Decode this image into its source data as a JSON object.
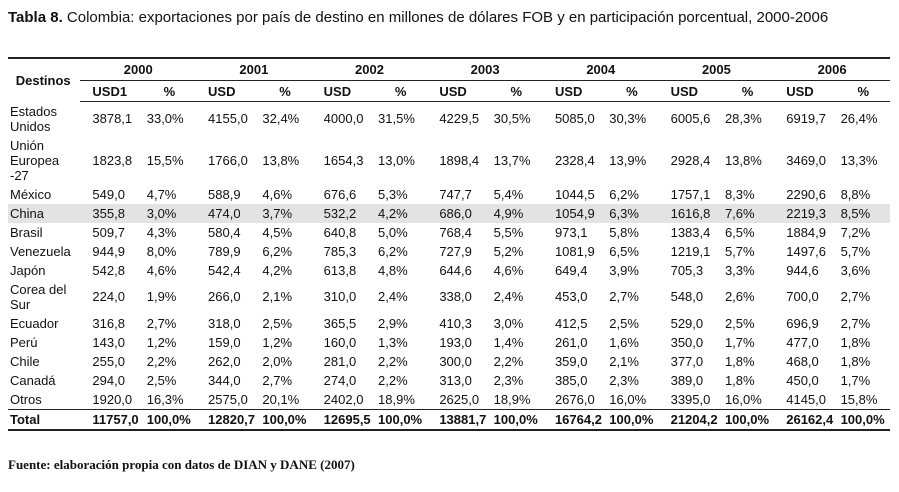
{
  "header": {
    "label": "Tabla 8.",
    "title": "Colombia: exportaciones por país de destino en millones de dólares FOB y en participación porcentual, 2000-2006"
  },
  "table": {
    "first_column": "Destinos",
    "years": [
      "2000",
      "2001",
      "2002",
      "2003",
      "2004",
      "2005",
      "2006"
    ],
    "subheaders": [
      "USD1",
      "%",
      "USD",
      "%",
      "USD",
      "%",
      "USD",
      "%",
      "USD",
      "%",
      "USD",
      "%",
      "USD",
      "%"
    ],
    "rows": [
      {
        "destino": "Estados Unidos",
        "values": [
          "3878,1",
          "33,0%",
          "4155,0",
          "32,4%",
          "4000,0",
          "31,5%",
          "4229,5",
          "30,5%",
          "5085,0",
          "30,3%",
          "6005,6",
          "28,3%",
          "6919,7",
          "26,4%"
        ]
      },
      {
        "destino": "Unión Europea -27",
        "values": [
          "1823,8",
          "15,5%",
          "1766,0",
          "13,8%",
          "1654,3",
          "13,0%",
          "1898,4",
          "13,7%",
          "2328,4",
          "13,9%",
          "2928,4",
          "13,8%",
          "3469,0",
          "13,3%"
        ]
      },
      {
        "destino": "México",
        "values": [
          "549,0",
          "4,7%",
          "588,9",
          "4,6%",
          "676,6",
          "5,3%",
          "747,7",
          "5,4%",
          "1044,5",
          "6,2%",
          "1757,1",
          "8,3%",
          "2290,6",
          "8,8%"
        ]
      },
      {
        "destino": "China",
        "values": [
          "355,8",
          "3,0%",
          "474,0",
          "3,7%",
          "532,2",
          "4,2%",
          "686,0",
          "4,9%",
          "1054,9",
          "6,3%",
          "1616,8",
          "7,6%",
          "2219,3",
          "8,5%"
        ]
      },
      {
        "destino": "Brasil",
        "values": [
          "509,7",
          "4,3%",
          "580,4",
          "4,5%",
          "640,8",
          "5,0%",
          "768,4",
          "5,5%",
          "973,1",
          "5,8%",
          "1383,4",
          "6,5%",
          "1884,9",
          "7,2%"
        ]
      },
      {
        "destino": "Venezuela",
        "values": [
          "944,9",
          "8,0%",
          "789,9",
          "6,2%",
          "785,3",
          "6,2%",
          "727,9",
          "5,2%",
          "1081,9",
          "6,5%",
          "1219,1",
          "5,7%",
          "1497,6",
          "5,7%"
        ]
      },
      {
        "destino": "Japón",
        "values": [
          "542,8",
          "4,6%",
          "542,4",
          "4,2%",
          "613,8",
          "4,8%",
          "644,6",
          "4,6%",
          "649,4",
          "3,9%",
          "705,3",
          "3,3%",
          "944,6",
          "3,6%"
        ]
      },
      {
        "destino": "Corea del Sur",
        "values": [
          "224,0",
          "1,9%",
          "266,0",
          "2,1%",
          "310,0",
          "2,4%",
          "338,0",
          "2,4%",
          "453,0",
          "2,7%",
          "548,0",
          "2,6%",
          "700,0",
          "2,7%"
        ]
      },
      {
        "destino": "Ecuador",
        "values": [
          "316,8",
          "2,7%",
          "318,0",
          "2,5%",
          "365,5",
          "2,9%",
          "410,3",
          "3,0%",
          "412,5",
          "2,5%",
          "529,0",
          "2,5%",
          "696,9",
          "2,7%"
        ]
      },
      {
        "destino": "Perú",
        "values": [
          "143,0",
          "1,2%",
          "159,0",
          "1,2%",
          "160,0",
          "1,3%",
          "193,0",
          "1,4%",
          "261,0",
          "1,6%",
          "350,0",
          "1,7%",
          "477,0",
          "1,8%"
        ]
      },
      {
        "destino": "Chile",
        "values": [
          "255,0",
          "2,2%",
          "262,0",
          "2,0%",
          "281,0",
          "2,2%",
          "300,0",
          "2,2%",
          "359,0",
          "2,1%",
          "377,0",
          "1,8%",
          "468,0",
          "1,8%"
        ]
      },
      {
        "destino": "Canadá",
        "values": [
          "294,0",
          "2,5%",
          "344,0",
          "2,7%",
          "274,0",
          "2,2%",
          "313,0",
          "2,3%",
          "385,0",
          "2,3%",
          "389,0",
          "1,8%",
          "450,0",
          "1,7%"
        ]
      },
      {
        "destino": "Otros",
        "values": [
          "1920,0",
          "16,3%",
          "2575,0",
          "20,1%",
          "2402,0",
          "18,9%",
          "2625,0",
          "18,9%",
          "2676,0",
          "16,0%",
          "3395,0",
          "16,0%",
          "4145,0",
          "15,8%"
        ]
      },
      {
        "destino": "Total",
        "values": [
          "11757,0",
          "100,0%",
          "12820,7",
          "100,0%",
          "12695,5",
          "100,0%",
          "13881,7",
          "100,0%",
          "16764,2",
          "100,0%",
          "21204,2",
          "100,0%",
          "26162,4",
          "100,0%"
        ]
      }
    ]
  },
  "footer": {
    "source": "Fuente: elaboración propia con datos de DIAN y DANE (2007)"
  }
}
